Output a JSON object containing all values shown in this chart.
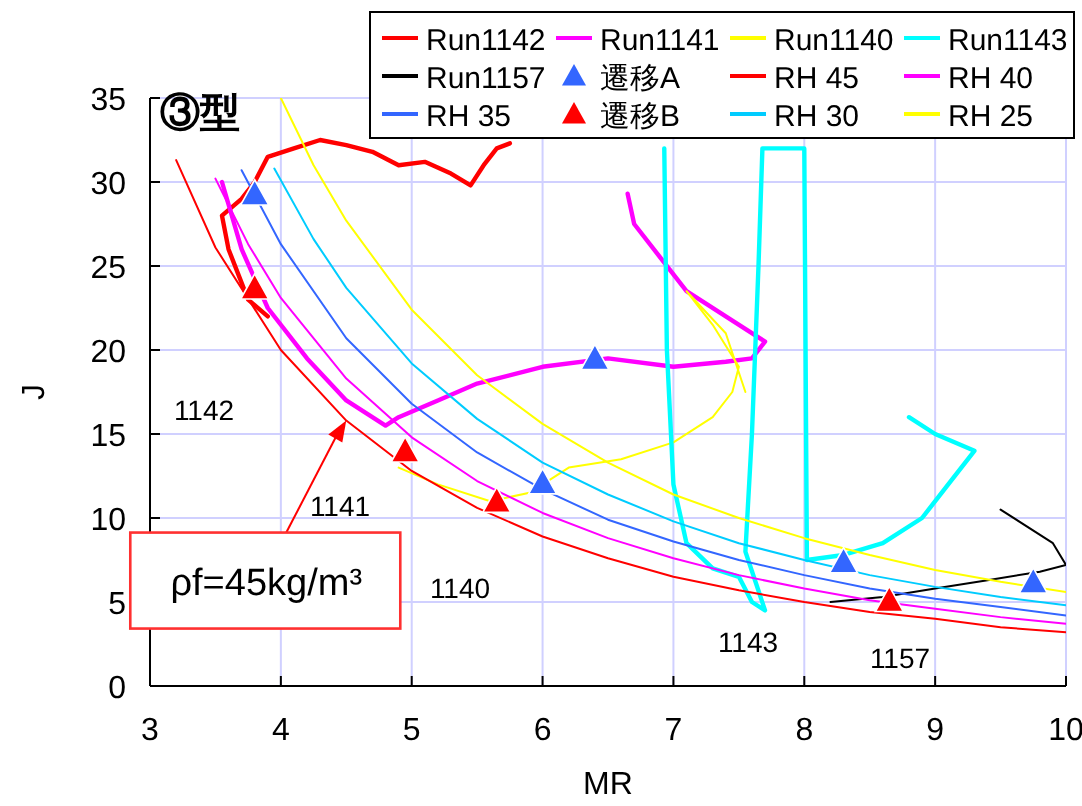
{
  "chart_data": {
    "type": "line",
    "title": "③型",
    "xlabel": "MR",
    "ylabel": "J",
    "xlim": [
      3,
      10
    ],
    "ylim": [
      0,
      35
    ],
    "xticks": [
      3,
      4,
      5,
      6,
      7,
      8,
      9,
      10
    ],
    "yticks": [
      0,
      5,
      10,
      15,
      20,
      25,
      30,
      35
    ],
    "grid": true,
    "legend": "top right",
    "line_style": "solid",
    "series": [
      {
        "name": "Run1142",
        "color": "#ff0000",
        "marker": "none",
        "x": [
          3.9,
          3.75,
          3.6,
          3.55,
          3.7,
          3.8,
          3.9,
          4.1,
          4.3,
          4.5,
          4.7,
          4.9,
          5.1,
          5.3,
          5.45,
          5.55,
          5.65,
          5.75
        ],
        "values": [
          22,
          23,
          26,
          28,
          29,
          30,
          31.5,
          32,
          32.5,
          32.2,
          31.8,
          31,
          31.2,
          30.5,
          29.8,
          31,
          32,
          32.3
        ]
      },
      {
        "name": "Run1141",
        "color": "#ff00ff",
        "marker": "none",
        "x": [
          3.55,
          3.7,
          3.9,
          4.2,
          4.5,
          4.8,
          4.9,
          5.2,
          5.5,
          6,
          6.5,
          7,
          7.4,
          7.6,
          7.7,
          7.4,
          7.1,
          6.9,
          6.7,
          6.65
        ],
        "values": [
          30,
          26,
          22.5,
          19.5,
          17,
          15.5,
          16,
          17,
          18,
          19,
          19.5,
          19,
          19.3,
          19.5,
          20.5,
          22,
          23.5,
          25.5,
          27.5,
          29.3
        ]
      },
      {
        "name": "Run1140",
        "color": "#ffff00",
        "marker": "none",
        "x": [
          4.9,
          5.2,
          5.6,
          5.9,
          6.2,
          6.6,
          7,
          7.3,
          7.45,
          7.5,
          7.3,
          7.1,
          7.4,
          7.55
        ],
        "values": [
          13,
          12,
          11,
          11.5,
          13,
          13.5,
          14.5,
          16,
          17.5,
          19,
          21.5,
          23.5,
          21,
          17.5
        ]
      },
      {
        "name": "Run1143",
        "color": "#00ffff",
        "marker": "none",
        "x": [
          6.93,
          6.95,
          7,
          7.1,
          7.3,
          7.5,
          7.6,
          7.7,
          7.55,
          7.6,
          7.65,
          7.68,
          8,
          8.02,
          8.3,
          8.6,
          8.9,
          9.1,
          9.3,
          9,
          8.8
        ],
        "values": [
          32,
          20,
          12,
          8.5,
          7,
          6.5,
          5,
          4.5,
          8,
          15,
          25,
          32,
          32,
          7.5,
          7.8,
          8.5,
          10,
          12,
          14,
          15,
          16
        ]
      },
      {
        "name": "Run1157",
        "color": "#000000",
        "marker": "none",
        "x": [
          8.2,
          8.6,
          9,
          9.4,
          9.8,
          10,
          9.9,
          9.5
        ],
        "values": [
          5,
          5.3,
          5.8,
          6.3,
          6.8,
          7.2,
          8.5,
          10.5
        ]
      },
      {
        "name": "遷移A",
        "color": "#3366ff",
        "type": "scatter",
        "marker": "triangle",
        "x": [
          3.8,
          6,
          6.4,
          8.3,
          9.75
        ],
        "values": [
          29.3,
          12.1,
          19.5,
          7.4,
          6.2
        ]
      },
      {
        "name": "RH 45",
        "color": "#ff0000",
        "marker": "none",
        "x": [
          3.2,
          3.5,
          4,
          4.5,
          5,
          5.5,
          6,
          6.5,
          7,
          7.5,
          8,
          8.5,
          9,
          9.5,
          10
        ],
        "values": [
          31.3,
          26.1,
          20,
          15.8,
          12.8,
          10.6,
          8.9,
          7.6,
          6.5,
          5.7,
          5,
          4.4,
          4,
          3.5,
          3.2
        ]
      },
      {
        "name": "RH 40",
        "color": "#ff00ff",
        "marker": "none",
        "x": [
          3.5,
          3.75,
          4,
          4.5,
          5,
          5.5,
          6,
          6.5,
          7,
          7.5,
          8,
          8.5,
          9,
          9.5,
          10
        ],
        "values": [
          30.2,
          26.3,
          23.1,
          18.3,
          14.8,
          12.2,
          10.3,
          8.8,
          7.6,
          6.6,
          5.8,
          5.1,
          4.6,
          4.1,
          3.7
        ]
      },
      {
        "name": "RH 35",
        "color": "#3366ff",
        "marker": "none",
        "x": [
          3.7,
          4,
          4.5,
          5,
          5.5,
          6,
          6.5,
          7,
          7.5,
          8,
          8.5,
          9,
          9.5,
          10
        ],
        "values": [
          30.7,
          26.3,
          20.7,
          16.8,
          13.9,
          11.7,
          9.9,
          8.6,
          7.5,
          6.6,
          5.8,
          5.2,
          4.7,
          4.2
        ]
      },
      {
        "name": "遷移B",
        "color": "#ff0000",
        "type": "scatter",
        "marker": "triangle",
        "x": [
          3.8,
          4.95,
          5.65,
          8.65
        ],
        "values": [
          23.7,
          14,
          11,
          5.1
        ]
      },
      {
        "name": "RH 30",
        "color": "#00ccff",
        "marker": "none",
        "x": [
          3.95,
          4.25,
          4.5,
          5,
          5.5,
          6,
          6.5,
          7,
          7.5,
          8,
          8.5,
          9,
          9.5,
          10
        ],
        "values": [
          30.8,
          26.6,
          23.7,
          19.2,
          15.9,
          13.3,
          11.4,
          9.8,
          8.5,
          7.5,
          6.6,
          5.9,
          5.3,
          4.8
        ]
      },
      {
        "name": "RH 25",
        "color": "#ffff00",
        "marker": "none",
        "x": [
          4,
          4.25,
          4.5,
          5,
          5.5,
          6,
          6.5,
          7,
          7.5,
          8,
          8.5,
          9,
          9.5,
          10
        ],
        "values": [
          35,
          31,
          27.7,
          22.4,
          18.5,
          15.6,
          13.3,
          11.4,
          10,
          8.8,
          7.8,
          6.9,
          6.2,
          5.6
        ]
      }
    ],
    "annotations": [
      "1142",
      "1141",
      "1140",
      "1143",
      "1157",
      {
        "text": "ρf=45kg/m³",
        "x": 4.5,
        "y": 15.8
      }
    ]
  }
}
